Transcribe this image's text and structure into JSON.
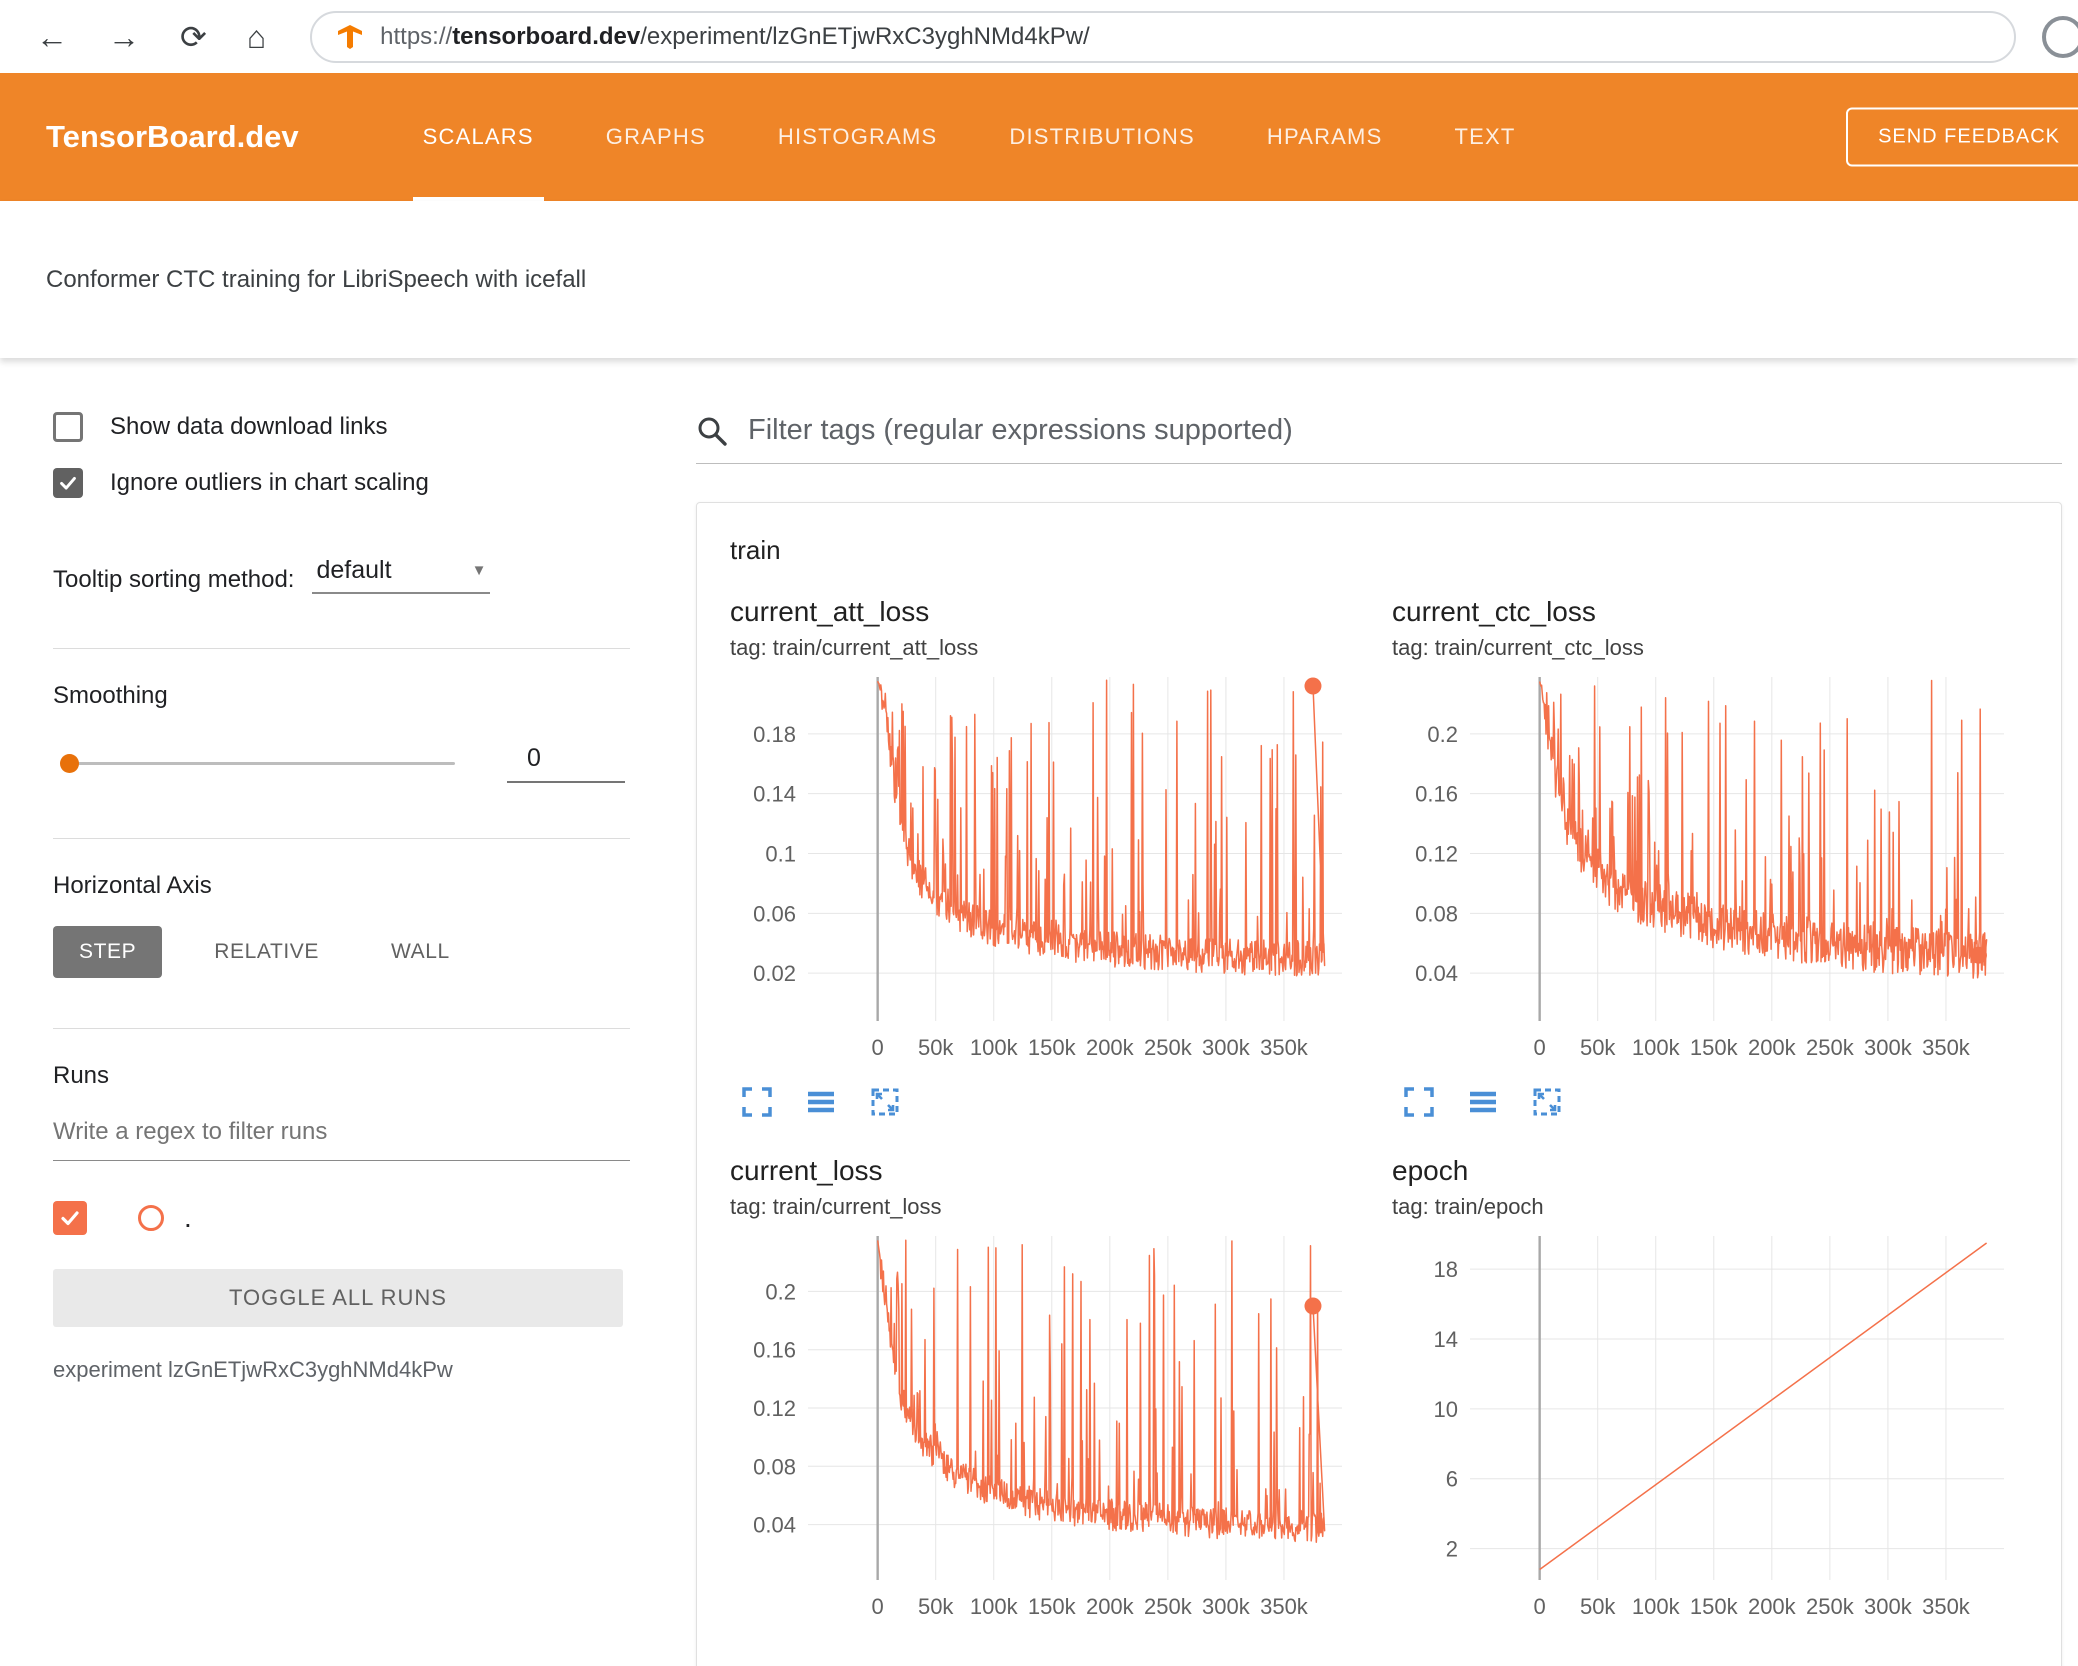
{
  "browser": {
    "back_glyph": "←",
    "forward_glyph": "→",
    "reload_glyph": "⟳",
    "home_glyph": "⌂",
    "url_scheme": "https://",
    "url_domain": "tensorboard.dev",
    "url_path": "/experiment/lzGnETjwRxC3yghNMd4kPw/"
  },
  "header": {
    "brand": "TensorBoard.dev",
    "tabs": [
      {
        "label": "SCALARS",
        "active": true
      },
      {
        "label": "GRAPHS",
        "active": false
      },
      {
        "label": "HISTOGRAMS",
        "active": false
      },
      {
        "label": "DISTRIBUTIONS",
        "active": false
      },
      {
        "label": "HPARAMS",
        "active": false
      },
      {
        "label": "TEXT",
        "active": false
      }
    ],
    "feedback_label": "SEND FEEDBACK"
  },
  "experiment": {
    "title": "Conformer CTC training for LibriSpeech with icefall",
    "id_line": "experiment lzGnETjwRxC3yghNMd4kPw"
  },
  "sidebar": {
    "show_download": {
      "label": "Show data download links",
      "checked": false
    },
    "ignore_outliers": {
      "label": "Ignore outliers in chart scaling",
      "checked": true
    },
    "tooltip_sort": {
      "label": "Tooltip sorting method:",
      "value": "default",
      "caret": "▼"
    },
    "smoothing": {
      "label": "Smoothing",
      "value": "0"
    },
    "horizontal_axis": {
      "label": "Horizontal Axis",
      "options": [
        "STEP",
        "RELATIVE",
        "WALL"
      ],
      "selected": "STEP"
    },
    "runs": {
      "label": "Runs",
      "filter_placeholder": "Write a regex to filter runs",
      "toggle_label": "TOGGLE ALL RUNS",
      "items": [
        {
          "name": ".",
          "checked": true,
          "color": "#f4714a"
        }
      ]
    }
  },
  "main": {
    "filter_placeholder": "Filter tags (regular expressions supported)",
    "section": "train"
  },
  "colors": {
    "header_orange": "#ef8528",
    "series_orange": "#f4714a",
    "icon_blue": "#4a8fd6",
    "grid": "#e6e6e6",
    "zero_line": "#a8a8a8",
    "tick_text": "#616161"
  },
  "chart_data": [
    {
      "id": "current_att_loss",
      "type": "line",
      "title": "current_att_loss",
      "tag": "tag: train/current_att_loss",
      "series_color": "#f4714a",
      "x_ticks": [
        [
          0,
          "0"
        ],
        [
          50000,
          "50k"
        ],
        [
          100000,
          "100k"
        ],
        [
          150000,
          "150k"
        ],
        [
          200000,
          "200k"
        ],
        [
          250000,
          "250k"
        ],
        [
          300000,
          "300k"
        ],
        [
          350000,
          "350k"
        ]
      ],
      "y_ticks": [
        [
          0.02,
          "0.02"
        ],
        [
          0.06,
          "0.06"
        ],
        [
          0.1,
          "0.1"
        ],
        [
          0.14,
          "0.14"
        ],
        [
          0.18,
          "0.18"
        ]
      ],
      "xlim": [
        -60000,
        400000
      ],
      "ylim": [
        -0.012,
        0.218
      ],
      "x_range": [
        0,
        385000
      ],
      "trend": [
        [
          0,
          0.215
        ],
        [
          5000,
          0.2
        ],
        [
          12000,
          0.16
        ],
        [
          20000,
          0.115
        ],
        [
          30000,
          0.09
        ],
        [
          50000,
          0.068
        ],
        [
          80000,
          0.054
        ],
        [
          120000,
          0.044
        ],
        [
          160000,
          0.039
        ],
        [
          200000,
          0.035
        ],
        [
          250000,
          0.032
        ],
        [
          300000,
          0.03
        ],
        [
          385000,
          0.028
        ]
      ],
      "noise": {
        "seed": 11,
        "spike_prob": 0.22,
        "spike_power": 2.6,
        "jitter": 0.012,
        "samples": 700
      },
      "end_dot": [
        375000,
        0.212
      ]
    },
    {
      "id": "current_ctc_loss",
      "type": "line",
      "title": "current_ctc_loss",
      "tag": "tag: train/current_ctc_loss",
      "series_color": "#f4714a",
      "x_ticks": [
        [
          0,
          "0"
        ],
        [
          50000,
          "50k"
        ],
        [
          100000,
          "100k"
        ],
        [
          150000,
          "150k"
        ],
        [
          200000,
          "200k"
        ],
        [
          250000,
          "250k"
        ],
        [
          300000,
          "300k"
        ],
        [
          350000,
          "350k"
        ]
      ],
      "y_ticks": [
        [
          0.04,
          "0.04"
        ],
        [
          0.08,
          "0.08"
        ],
        [
          0.12,
          "0.12"
        ],
        [
          0.16,
          "0.16"
        ],
        [
          0.2,
          "0.2"
        ]
      ],
      "xlim": [
        -60000,
        400000
      ],
      "ylim": [
        0.008,
        0.238
      ],
      "x_range": [
        0,
        385000
      ],
      "trend": [
        [
          0,
          0.235
        ],
        [
          8000,
          0.2
        ],
        [
          15000,
          0.165
        ],
        [
          25000,
          0.135
        ],
        [
          40000,
          0.115
        ],
        [
          60000,
          0.098
        ],
        [
          90000,
          0.086
        ],
        [
          120000,
          0.077
        ],
        [
          160000,
          0.069
        ],
        [
          200000,
          0.063
        ],
        [
          250000,
          0.058
        ],
        [
          300000,
          0.054
        ],
        [
          385000,
          0.05
        ]
      ],
      "noise": {
        "seed": 47,
        "spike_prob": 0.2,
        "spike_power": 2.8,
        "jitter": 0.016,
        "samples": 700
      },
      "end_dot": [
        378000,
        0.052
      ]
    },
    {
      "id": "current_loss",
      "type": "line",
      "title": "current_loss",
      "tag": "tag: train/current_loss",
      "series_color": "#f4714a",
      "x_ticks": [
        [
          0,
          "0"
        ],
        [
          50000,
          "50k"
        ],
        [
          100000,
          "100k"
        ],
        [
          150000,
          "150k"
        ],
        [
          200000,
          "200k"
        ],
        [
          250000,
          "250k"
        ],
        [
          300000,
          "300k"
        ],
        [
          350000,
          "350k"
        ]
      ],
      "y_ticks": [
        [
          0.04,
          "0.04"
        ],
        [
          0.08,
          "0.08"
        ],
        [
          0.12,
          "0.12"
        ],
        [
          0.16,
          "0.16"
        ],
        [
          0.2,
          "0.2"
        ]
      ],
      "xlim": [
        -60000,
        400000
      ],
      "ylim": [
        0.002,
        0.238
      ],
      "x_range": [
        0,
        385000
      ],
      "trend": [
        [
          0,
          0.235
        ],
        [
          10000,
          0.175
        ],
        [
          20000,
          0.125
        ],
        [
          35000,
          0.098
        ],
        [
          60000,
          0.078
        ],
        [
          100000,
          0.06
        ],
        [
          150000,
          0.051
        ],
        [
          200000,
          0.046
        ],
        [
          250000,
          0.042
        ],
        [
          300000,
          0.04
        ],
        [
          385000,
          0.037
        ]
      ],
      "noise": {
        "seed": 29,
        "spike_prob": 0.2,
        "spike_power": 2.7,
        "jitter": 0.011,
        "samples": 700
      },
      "end_dot": [
        375000,
        0.19
      ]
    },
    {
      "id": "epoch",
      "type": "line",
      "title": "epoch",
      "tag": "tag: train/epoch",
      "series_color": "#f4714a",
      "x_ticks": [
        [
          0,
          "0"
        ],
        [
          50000,
          "50k"
        ],
        [
          100000,
          "100k"
        ],
        [
          150000,
          "150k"
        ],
        [
          200000,
          "200k"
        ],
        [
          250000,
          "250k"
        ],
        [
          300000,
          "300k"
        ],
        [
          350000,
          "350k"
        ]
      ],
      "y_ticks": [
        [
          2,
          "2"
        ],
        [
          6,
          "6"
        ],
        [
          10,
          "10"
        ],
        [
          14,
          "14"
        ],
        [
          18,
          "18"
        ]
      ],
      "xlim": [
        -60000,
        400000
      ],
      "ylim": [
        0.2,
        19.9
      ],
      "x_range": [
        0,
        385000
      ],
      "trend": [
        [
          0,
          0.8
        ],
        [
          385000,
          19.5
        ]
      ],
      "noise": {
        "seed": 1,
        "spike_prob": 0,
        "spike_power": 1,
        "jitter": 0,
        "samples": 2
      },
      "end_dot": null
    }
  ]
}
